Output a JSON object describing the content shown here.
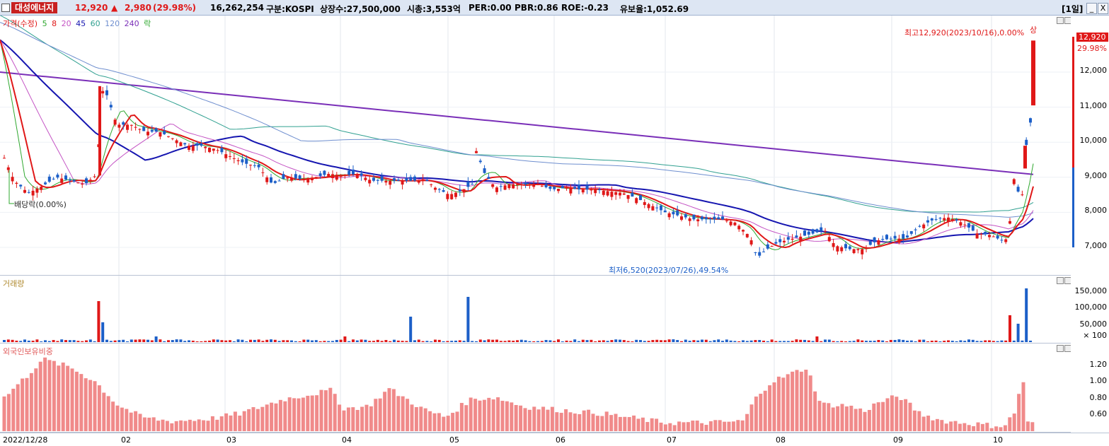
{
  "header": {
    "name": "대성에너지",
    "price": "12,920",
    "change_arrow": "▲",
    "change": "2,980",
    "change_pct": "(29.98%)",
    "volume": "16,262,254",
    "market": "구분:KOSPI",
    "shares": "상장수:27,500,000",
    "mcap": "시총:3,553억",
    "per": "PER:0.00",
    "pbr": "PBR:0.86",
    "roe": "ROE:-0.23",
    "reserve": "유보율:1,052.69",
    "period": "[1일]",
    "btn_min": "_",
    "btn_close": "X"
  },
  "price_pane": {
    "legend": {
      "price": "가격(수정)",
      "ma5": "5",
      "ma8": "8",
      "ma20": "20",
      "ma45": "45",
      "ma60": "60",
      "ma120": "120",
      "ma240": "240",
      "rak": "락"
    },
    "high_note": "최고12,920(2023/10/16),0.00%",
    "low_note": "최저6,520(2023/07/26),49.54%",
    "dividend_note": "배당락(0.00%)",
    "current_price": "12,920",
    "current_pct": "29.98%",
    "limit_up": "상",
    "yticks": [
      "12,000",
      "11,000",
      "10,000",
      "9,000",
      "8,000",
      "7,000"
    ]
  },
  "volume_pane": {
    "title": "거래량",
    "yticks": [
      "150,000",
      "100,000",
      "50,000",
      "× 100"
    ]
  },
  "foreign_pane": {
    "title": "외국인보유비중",
    "yticks": [
      "1.20",
      "1.00",
      "0.80",
      "0.60"
    ]
  },
  "dates": [
    "2022/12/28",
    "02",
    "03",
    "04",
    "05",
    "06",
    "07",
    "08",
    "09",
    "10"
  ],
  "colors": {
    "up": "#e01818",
    "down": "#1c5fc8",
    "ma5": "#2fa82f",
    "ma8": "#e01818",
    "ma20": "#c454c4",
    "ma45": "#1515b0",
    "ma60": "#30a090",
    "ma120": "#6f8fcf",
    "ma240": "#7a2fb8",
    "foreign": "#f08a8a"
  }
}
